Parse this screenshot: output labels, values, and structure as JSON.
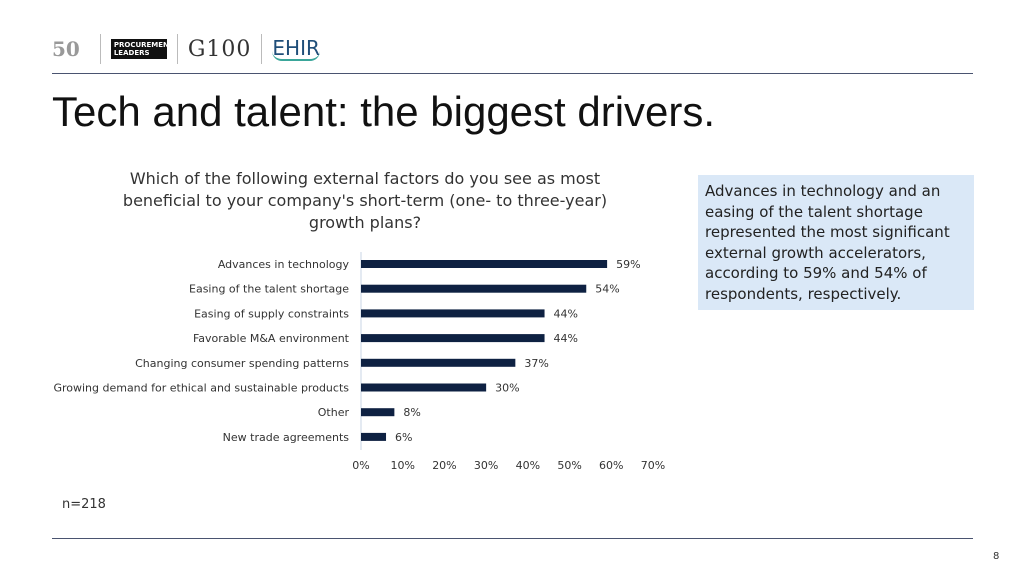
{
  "logos": {
    "fifty": "50",
    "procurement_leaders": "PROCUREMENT LEADERS",
    "g100": "G100",
    "ehir": "EHIR"
  },
  "title": "Tech and talent: the biggest drivers.",
  "question": "Which of the following external factors do you see as most beneficial to your company's short-term (one- to three-year) growth plans?",
  "callout": "Advances in technology and an easing of the talent shortage represented the most significant external growth accelerators, according to 59% and 54% of respondents, respectively.",
  "sample_size": "n=218",
  "page_number": "8",
  "chart_data": {
    "type": "bar",
    "orientation": "horizontal",
    "categories": [
      "Advances in technology",
      "Easing of the talent shortage",
      "Easing of supply constraints",
      "Favorable M&A environment",
      "Changing consumer spending patterns",
      "Growing demand for ethical and sustainable products",
      "Other",
      "New trade agreements"
    ],
    "values": [
      59,
      54,
      44,
      44,
      37,
      30,
      8,
      6
    ],
    "data_labels": [
      "59%",
      "54%",
      "44%",
      "44%",
      "37%",
      "30%",
      "8%",
      "6%"
    ],
    "xlim": [
      0,
      70
    ],
    "xticks": [
      "0%",
      "10%",
      "20%",
      "30%",
      "40%",
      "50%",
      "60%",
      "70%"
    ],
    "bar_color": "#0e2142",
    "grid": false
  }
}
